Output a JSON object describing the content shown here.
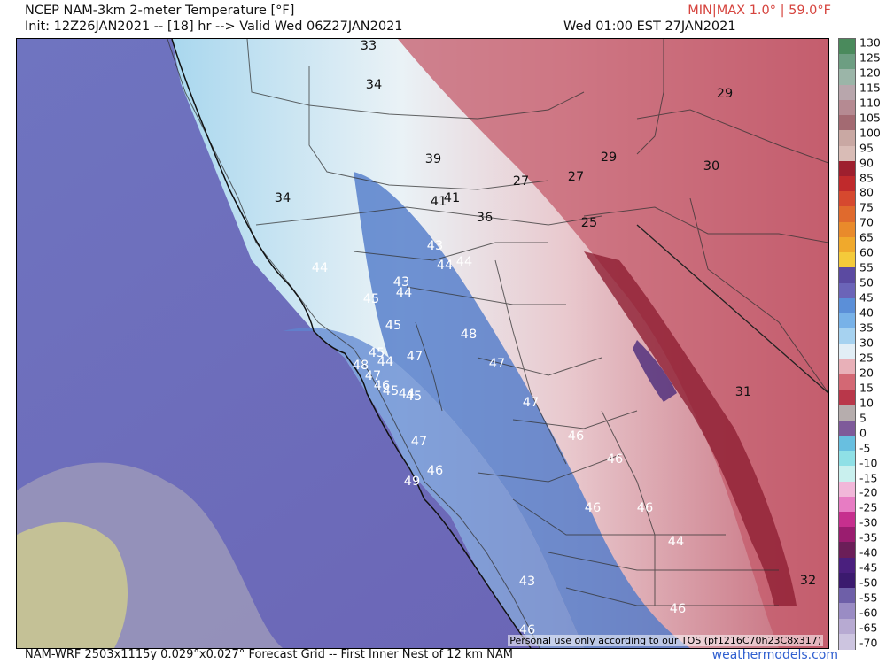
{
  "header": {
    "title": "NCEP NAM-3km 2-meter Temperature [°F]",
    "init": "Init: 12Z26JAN2021 -- [18] hr --> Valid Wed 06Z27JAN2021",
    "minmax": "MIN|MAX 1.0° | 59.0°F",
    "valid_local": "Wed 01:00 EST 27JAN2021"
  },
  "footer": {
    "grid_info": "NAM-WRF 2503x1115y 0.029°x0.027° Forecast Grid -- First Inner Nest of 12 km NAM",
    "brand": "weathermodels.com",
    "tos": "Personal use only according to our TOS (pf1216C70h23C8x317)"
  },
  "colorbar": {
    "ticks": [
      "130",
      "125",
      "120",
      "115",
      "110",
      "105",
      "100",
      "95",
      "90",
      "85",
      "80",
      "75",
      "70",
      "65",
      "60",
      "55",
      "50",
      "45",
      "40",
      "35",
      "30",
      "25",
      "20",
      "15",
      "10",
      "5",
      "0",
      "-5",
      "-10",
      "-15",
      "-20",
      "-25",
      "-30",
      "-35",
      "-40",
      "-45",
      "-50",
      "-55",
      "-60",
      "-65",
      "-70"
    ],
    "colors": [
      "#4a8a5c",
      "#6d9e82",
      "#9bb5a8",
      "#b8a6ac",
      "#b58a92",
      "#a36a72",
      "#c9a8a3",
      "#d9bcb6",
      "#9e1f2e",
      "#c02a2c",
      "#d6492f",
      "#e06a2d",
      "#e98a2b",
      "#f0a92c",
      "#f4ca3a",
      "#5b4aa1",
      "#6b64b8",
      "#5b8fd8",
      "#78b2e8",
      "#a6d2f0",
      "#e2eef6",
      "#e8b0b8",
      "#d36874",
      "#b9374a",
      "#b6adad",
      "#7e5a9a",
      "#68bfe0",
      "#8fe0e6",
      "#c9f0ee",
      "#f1b7d9",
      "#e77cc3",
      "#c62f8e",
      "#9a1d6f",
      "#6b1e58",
      "#4a1f7e",
      "#3b1a6e",
      "#6e5fa8",
      "#9a8cc4",
      "#b7aad2",
      "#cdc5e0"
    ]
  },
  "temperature_labels": [
    "33",
    "34",
    "29",
    "39",
    "34",
    "30",
    "27",
    "27",
    "29",
    "41",
    "41",
    "36",
    "25",
    "43",
    "44",
    "44",
    "44",
    "43",
    "44",
    "45",
    "45",
    "48",
    "45",
    "44",
    "47",
    "48",
    "47",
    "47",
    "46",
    "45",
    "44",
    "45",
    "47",
    "46",
    "46",
    "47",
    "46",
    "49",
    "46",
    "46",
    "44",
    "43",
    "46",
    "32",
    "46",
    "31"
  ]
}
